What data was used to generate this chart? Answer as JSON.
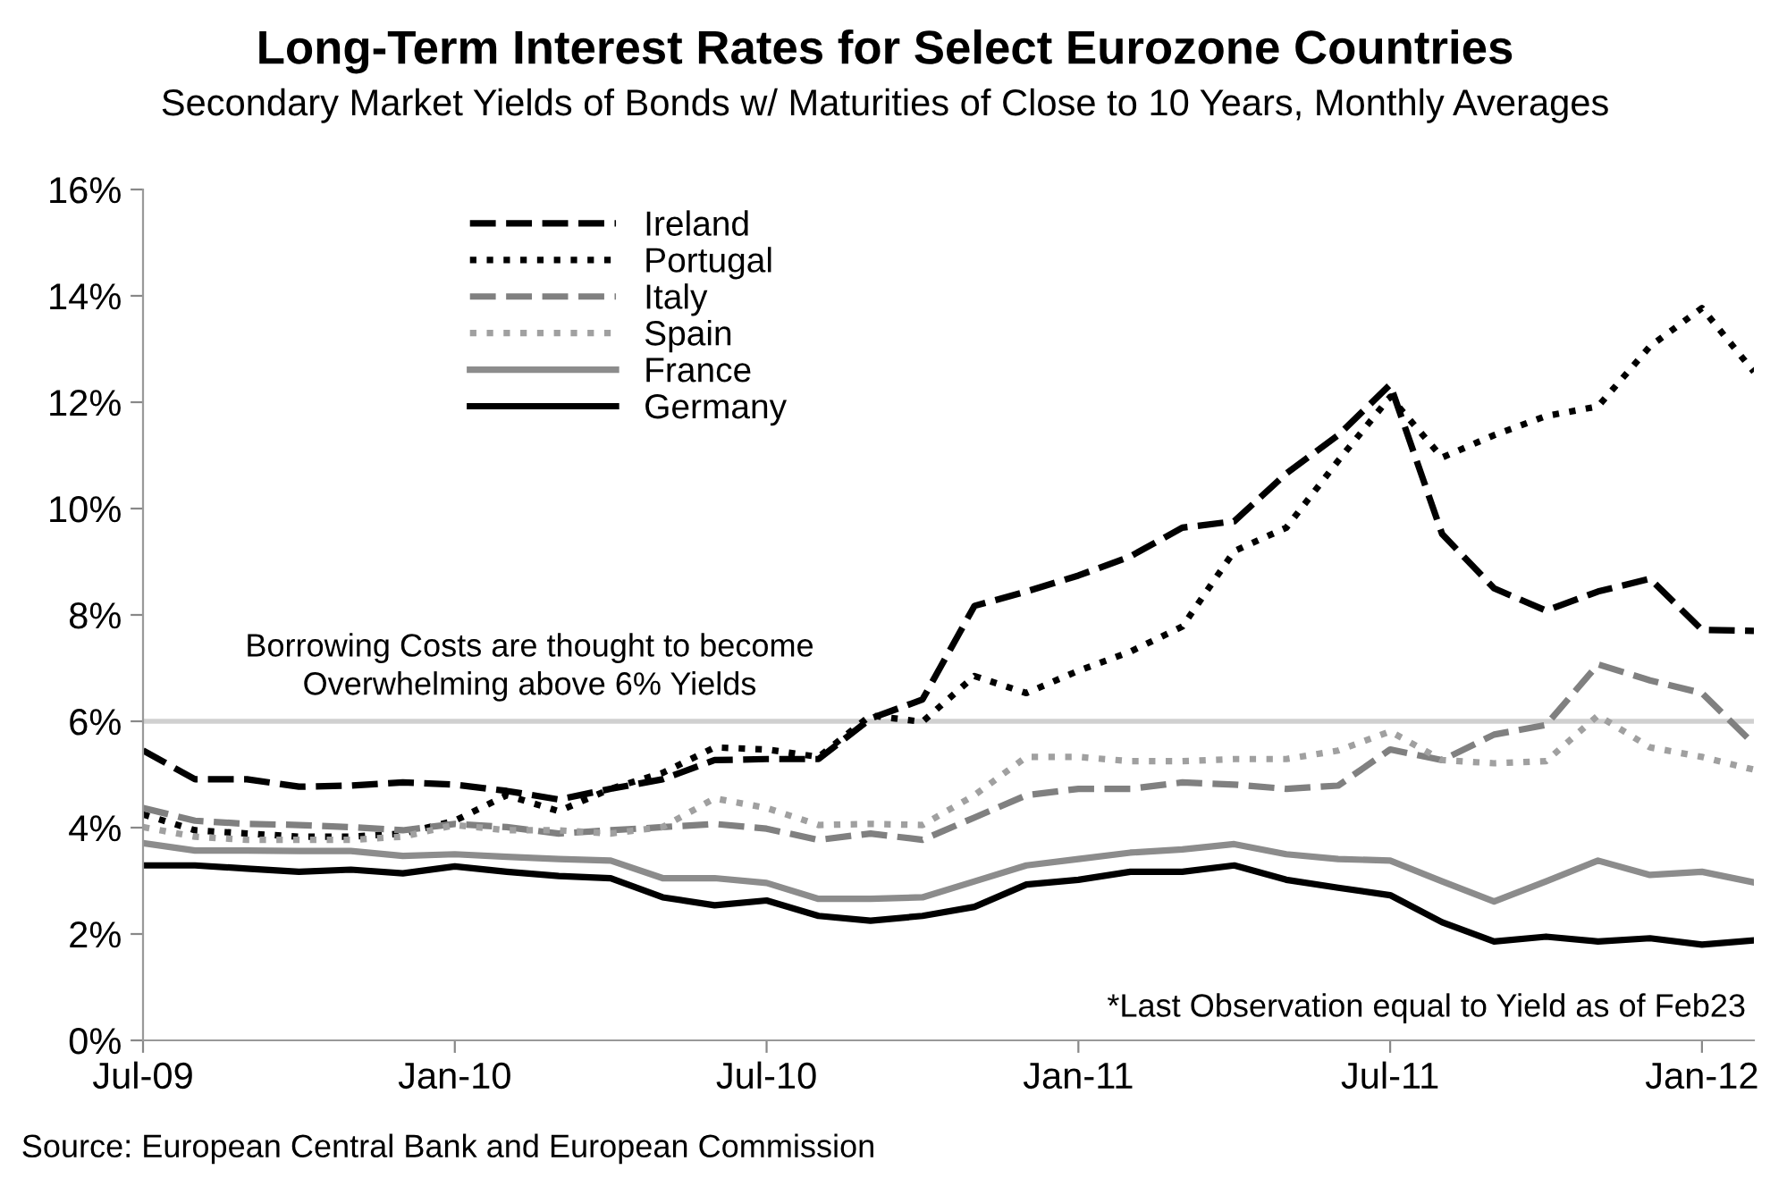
{
  "chart_data": {
    "type": "line",
    "title": "Long-Term Interest Rates for Select Eurozone Countries",
    "subtitle": "Secondary Market Yields of Bonds w/ Maturities of Close to 10 Years, Monthly Averages",
    "x": [
      "2009-07",
      "2009-08",
      "2009-09",
      "2009-10",
      "2009-11",
      "2009-12",
      "2010-01",
      "2010-02",
      "2010-03",
      "2010-04",
      "2010-05",
      "2010-06",
      "2010-07",
      "2010-08",
      "2010-09",
      "2010-10",
      "2010-11",
      "2010-12",
      "2011-01",
      "2011-02",
      "2011-03",
      "2011-04",
      "2011-05",
      "2011-06",
      "2011-07",
      "2011-08",
      "2011-09",
      "2011-10",
      "2011-11",
      "2011-12",
      "2012-01",
      "2012-02"
    ],
    "series": [
      {
        "name": "Ireland",
        "color": "#000000",
        "line_style": "dashed",
        "values": [
          5.45,
          4.91,
          4.91,
          4.77,
          4.79,
          4.85,
          4.81,
          4.69,
          4.53,
          4.73,
          4.91,
          5.27,
          5.29,
          5.29,
          6.05,
          6.41,
          8.17,
          8.44,
          8.74,
          9.1,
          9.64,
          9.76,
          10.66,
          11.38,
          12.33,
          9.52,
          8.5,
          8.08,
          8.44,
          8.68,
          7.72,
          7.7
        ]
      },
      {
        "name": "Portugal",
        "color": "#000000",
        "line_style": "dotted",
        "values": [
          4.25,
          3.95,
          3.89,
          3.83,
          3.83,
          3.89,
          4.13,
          4.61,
          4.31,
          4.73,
          5.03,
          5.51,
          5.47,
          5.33,
          6.11,
          5.99,
          6.85,
          6.53,
          6.95,
          7.31,
          7.78,
          9.2,
          9.64,
          10.9,
          12.1,
          10.96,
          11.38,
          11.74,
          11.92,
          13.05,
          13.77,
          12.57
        ]
      },
      {
        "name": "Italy",
        "color": "#808080",
        "line_style": "dashed",
        "values": [
          4.37,
          4.13,
          4.07,
          4.05,
          4.01,
          3.95,
          4.07,
          4.01,
          3.89,
          3.95,
          4.01,
          4.07,
          3.98,
          3.77,
          3.89,
          3.77,
          4.19,
          4.61,
          4.73,
          4.73,
          4.85,
          4.81,
          4.73,
          4.79,
          5.47,
          5.27,
          5.75,
          5.93,
          7.07,
          6.77,
          6.53,
          5.57
        ]
      },
      {
        "name": "Spain",
        "color": "#a0a0a0",
        "line_style": "dotted",
        "values": [
          4.01,
          3.83,
          3.77,
          3.77,
          3.77,
          3.83,
          4.05,
          3.95,
          3.95,
          3.89,
          4.01,
          4.55,
          4.37,
          4.05,
          4.07,
          4.05,
          4.61,
          5.33,
          5.33,
          5.25,
          5.25,
          5.29,
          5.29,
          5.45,
          5.81,
          5.27,
          5.21,
          5.25,
          6.11,
          5.51,
          5.33,
          5.09
        ]
      },
      {
        "name": "France",
        "color": "#8c8c8c",
        "line_style": "solid",
        "values": [
          3.71,
          3.57,
          3.57,
          3.56,
          3.56,
          3.47,
          3.5,
          3.45,
          3.41,
          3.38,
          3.05,
          3.05,
          2.96,
          2.66,
          2.66,
          2.69,
          2.99,
          3.29,
          3.41,
          3.53,
          3.59,
          3.69,
          3.5,
          3.41,
          3.38,
          2.99,
          2.61,
          2.99,
          3.38,
          3.11,
          3.17,
          2.97
        ]
      },
      {
        "name": "Germany",
        "color": "#000000",
        "line_style": "solid",
        "values": [
          3.29,
          3.29,
          3.23,
          3.17,
          3.21,
          3.14,
          3.27,
          3.17,
          3.09,
          3.05,
          2.69,
          2.54,
          2.63,
          2.34,
          2.25,
          2.34,
          2.51,
          2.93,
          3.02,
          3.17,
          3.17,
          3.29,
          3.02,
          2.87,
          2.73,
          2.22,
          1.86,
          1.95,
          1.86,
          1.92,
          1.8,
          1.88
        ]
      }
    ],
    "xlim": [
      "2009-07",
      "2012-02"
    ],
    "xticks": [
      {
        "value": "2009-07",
        "label": "Jul-09"
      },
      {
        "value": "2010-01",
        "label": "Jan-10"
      },
      {
        "value": "2010-07",
        "label": "Jul-10"
      },
      {
        "value": "2011-01",
        "label": "Jan-11"
      },
      {
        "value": "2011-07",
        "label": "Jul-11"
      },
      {
        "value": "2012-01",
        "label": "Jan-12"
      }
    ],
    "ylim": [
      0,
      16
    ],
    "yticks": [
      {
        "value": 0,
        "label": "0%"
      },
      {
        "value": 2,
        "label": "2%"
      },
      {
        "value": 4,
        "label": "4%"
      },
      {
        "value": 6,
        "label": "6%"
      },
      {
        "value": 8,
        "label": "8%"
      },
      {
        "value": 10,
        "label": "10%"
      },
      {
        "value": 12,
        "label": "12%"
      },
      {
        "value": 14,
        "label": "14%"
      },
      {
        "value": 16,
        "label": "16%"
      }
    ],
    "ref_lines": [
      {
        "axis": "y",
        "value": 6,
        "label": "Borrowing Costs are thought to become\nOverwhelming above 6% Yields",
        "color": "#d0d0d0"
      }
    ],
    "annotations": [
      "*Last Observation equal to Yield as of Feb23",
      "Source: European Central Bank and European Commission"
    ],
    "legend": "top left",
    "grid": false
  }
}
